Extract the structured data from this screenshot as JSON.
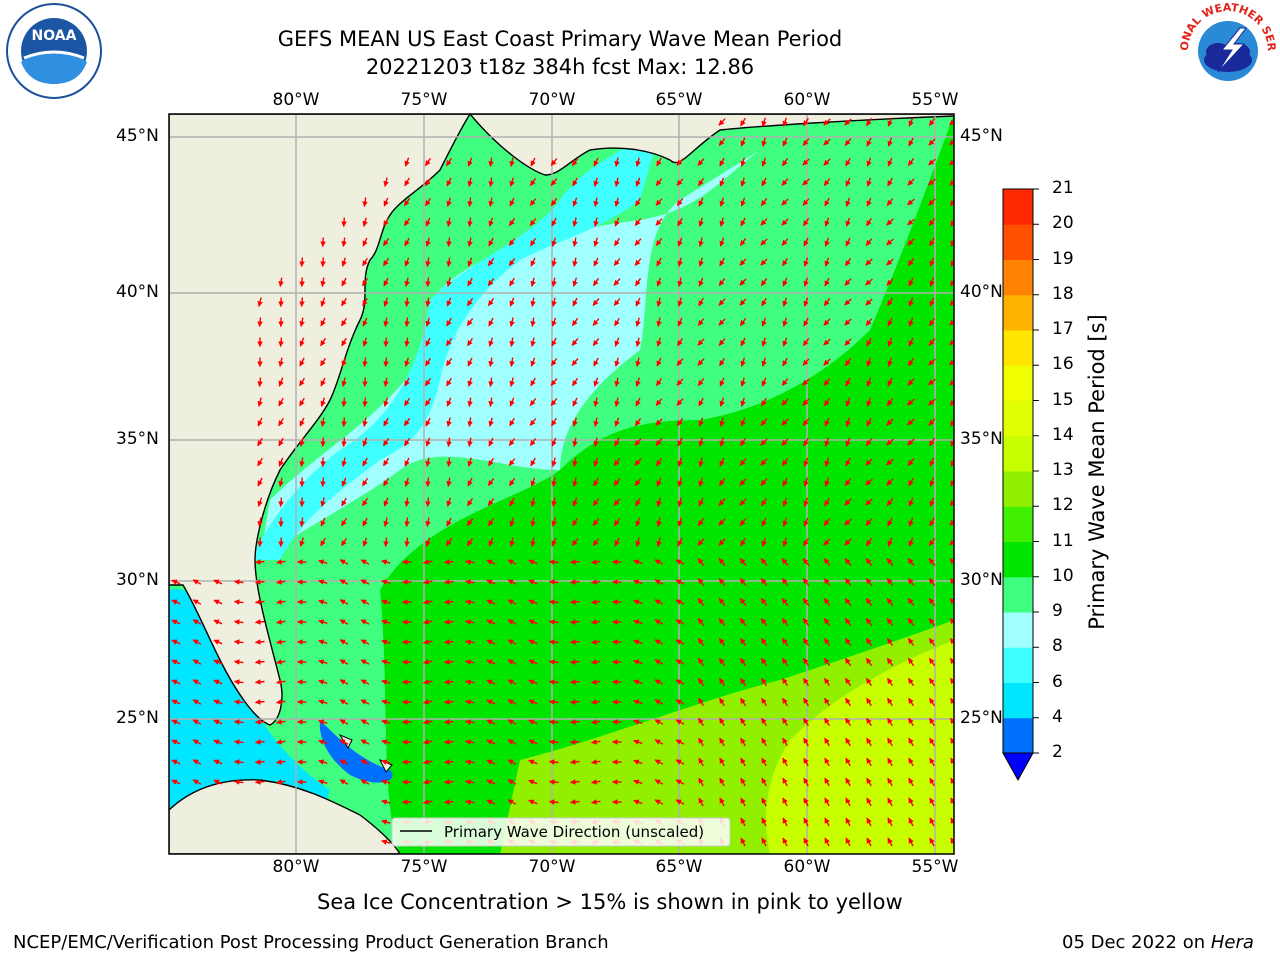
{
  "title_line1": "GEFS MEAN US East Coast Primary Wave Mean Period",
  "title_line2": "20221203 t18z 384h fcst   Max: 12.86",
  "logos": {
    "left": {
      "icon": "noaa-logo",
      "text": "NOAA"
    },
    "right": {
      "icon": "national-weather-service-logo",
      "text": "NATIONAL WEATHER SERVICE"
    }
  },
  "lon_labels": [
    "80°W",
    "75°W",
    "70°W",
    "65°W",
    "60°W",
    "55°W"
  ],
  "lat_labels": [
    "45°N",
    "40°N",
    "35°N",
    "30°N",
    "25°N"
  ],
  "legend_label": "Primary Wave Direction (unscaled)",
  "colorbar": {
    "label": "Primary Wave Mean Period [s]",
    "ticks": [
      "2",
      "4",
      "6",
      "8",
      "9",
      "10",
      "11",
      "12",
      "13",
      "14",
      "15",
      "16",
      "17",
      "18",
      "19",
      "20",
      "21"
    ],
    "colors": [
      "#0070ff",
      "#00e6ff",
      "#40ffff",
      "#a0ffff",
      "#40ff80",
      "#00e600",
      "#40f000",
      "#90f000",
      "#c8ff00",
      "#e0ff00",
      "#f0ff00",
      "#ffe600",
      "#ffb400",
      "#ff8200",
      "#ff5000",
      "#ff2800",
      "#ff0000"
    ],
    "under_color": "#0000ff"
  },
  "note": "Sea Ice Concentration > 15% is shown in pink to yellow",
  "footer_left": "NCEP/EMC/Verification Post Processing Product Generation Branch",
  "footer_date": "05 Dec 2022 on ",
  "footer_host": "Hera",
  "colors": {
    "land": "#efefdf",
    "arrow": "#ff0000",
    "grid": "#b0b0b0"
  }
}
